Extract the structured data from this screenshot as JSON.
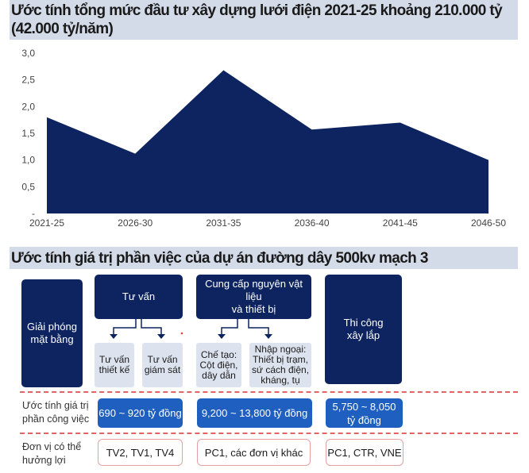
{
  "title1": "Ước tính tổng mức đầu tư xây dựng lưới điện 2021-25 khoảng 210.000 tỷ (42.000 tỷ/năm)",
  "title2": "Ước tính giá trị phần việc của dự án đường dây 500kv mạch 3",
  "chart_data": {
    "type": "area",
    "categories": [
      "2021-25",
      "2026-30",
      "2031-35",
      "2036-40",
      "2041-45",
      "2046-50"
    ],
    "values": [
      1.8,
      1.12,
      2.68,
      1.57,
      1.7,
      1.0
    ],
    "yticks": [
      "-",
      "0,5",
      "1,0",
      "1,5",
      "2,0",
      "2,5",
      "3,0"
    ],
    "ylim": [
      0,
      3
    ],
    "grid": false,
    "color": "#0d2461"
  },
  "diagram": {
    "gpmb": "Giải phóng\nmặt bằng",
    "tuvan": "Tư vấn",
    "cungcap": "Cung cấp nguyên vật liệu\nvà thiết bị",
    "thicong": "Thi công\nxây lắp",
    "sub": [
      "Tư vấn\nthiết kế",
      "Tư vấn\ngiám sát",
      "Chế tạo:\nCột điện,\ndây dẫn",
      "Nhập ngoại:\nThiết bị trạm,\nsứ cách điện,\nkháng, tụ"
    ],
    "row_value_label": "Ước tính giá trị\nphần công việc",
    "values": [
      "690 ~ 920 tỷ đồng",
      "9,200 ~ 13,800 tỷ đồng",
      "5,750 ~ 8,050\ntỷ đồng"
    ],
    "row_benef_label": "Đơn vị có thể\nhưởng lợi",
    "beneficiaries": [
      "TV2, TV1, TV4",
      "PC1, các đơn vị khác",
      "PC1, CTR, VNE"
    ]
  }
}
